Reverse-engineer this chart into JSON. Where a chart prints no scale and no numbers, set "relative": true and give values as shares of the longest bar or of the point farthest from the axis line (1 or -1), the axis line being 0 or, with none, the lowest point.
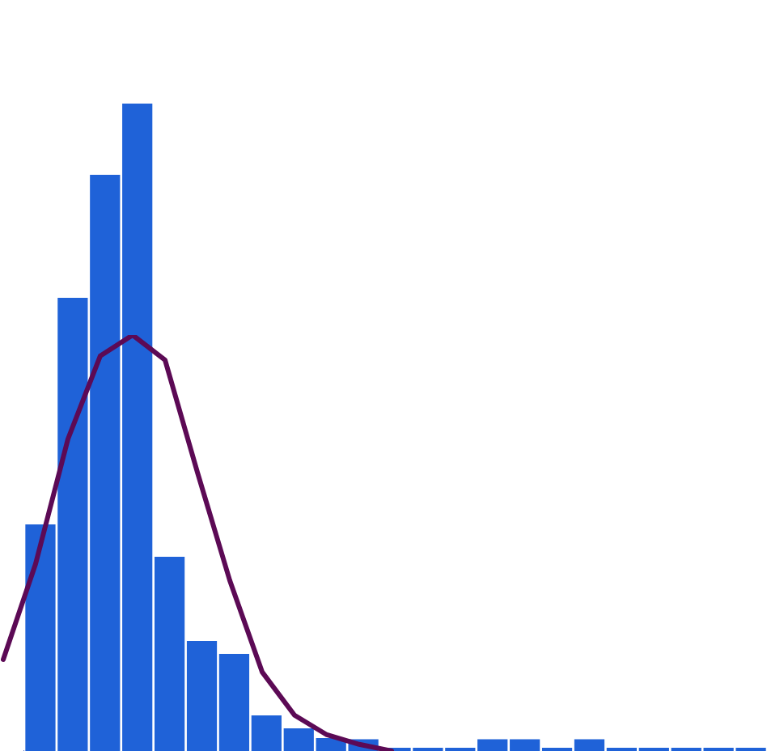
{
  "chart_data": [
    {
      "type": "bar",
      "relative": true,
      "grid": false,
      "legend": false,
      "categories": [
        null,
        null,
        null,
        null,
        null,
        null,
        null,
        null,
        null,
        null,
        null,
        null,
        null,
        null,
        null,
        null,
        null,
        null,
        null,
        null,
        null,
        null,
        null
      ],
      "series": [
        {
          "color": "#1f62d8",
          "values": [
            0.35,
            0.7,
            0.89,
            1,
            0.3,
            0.17,
            0.15,
            0.055,
            0.035,
            0.02,
            0.018,
            0,
            0,
            0,
            0.018,
            0.018,
            0,
            0.018,
            0,
            0,
            0,
            0,
            0
          ]
        }
      ]
    },
    {
      "type": "line",
      "relative": true,
      "grid": false,
      "legend": false,
      "marker": "none",
      "categories": [
        null,
        null,
        null,
        null,
        null,
        null,
        null,
        null,
        null,
        null,
        null,
        null,
        null
      ],
      "series": [
        {
          "color": "#5c0a55",
          "values": [
            0.22,
            0.45,
            0.75,
            0.95,
            1,
            0.94,
            0.67,
            0.41,
            0.19,
            0.086,
            0.039,
            0.016,
            0
          ]
        }
      ]
    }
  ]
}
